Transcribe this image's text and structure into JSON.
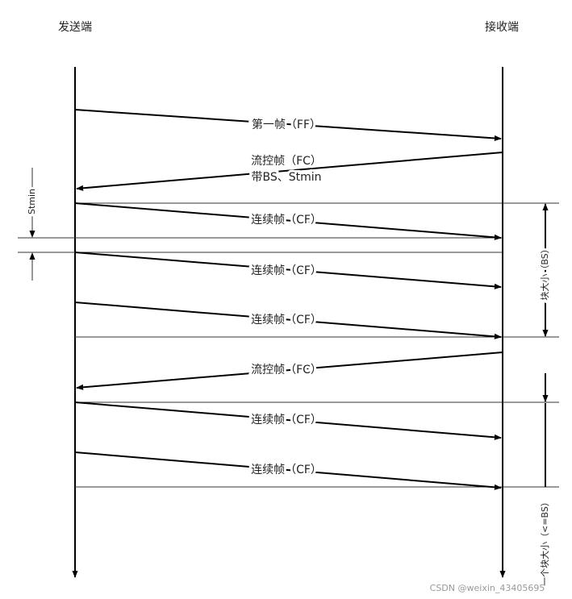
{
  "participants": {
    "sender": "发送端",
    "receiver": "接收端"
  },
  "messages": [
    {
      "label": "第一帧（FF）"
    },
    {
      "label": "流控帧（FC）",
      "sublabel": "带BS、Stmin"
    },
    {
      "label": "连续帧（CF）"
    },
    {
      "label": "连续帧（CF）"
    },
    {
      "label": "连续帧（CF）"
    },
    {
      "label": "流控帧（FC）"
    },
    {
      "label": "连续帧（CF）"
    },
    {
      "label": "连续帧（CF）"
    }
  ],
  "annotations": {
    "stmin": "Stmin",
    "block_size": "块大小（BS）",
    "last_block_size": "一个块大小（<=BS）"
  },
  "watermark": "CSDN @weixin_43405695"
}
